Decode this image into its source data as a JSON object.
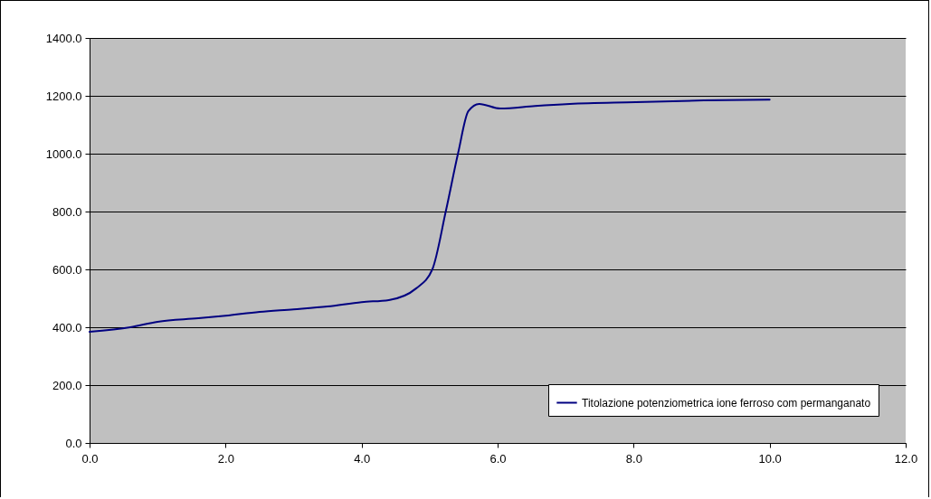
{
  "chart_data": {
    "type": "line",
    "x": [
      0,
      0.6,
      1,
      1.6,
      2,
      2.5,
      3,
      3.5,
      4,
      4.4,
      4.8,
      5.04,
      5.24,
      5.42,
      5.57,
      5.73,
      6.04,
      6.55,
      7.06,
      8.03,
      9.03,
      10
    ],
    "series": [
      {
        "name": "Titolazione potenziometrica ione ferroso com permanganato",
        "color": "#000080",
        "values": [
          384,
          400,
          419,
          431,
          440,
          453,
          462,
          472,
          487,
          494,
          534,
          600,
          803,
          1003,
          1147,
          1172,
          1156,
          1165,
          1172,
          1178,
          1184,
          1187
        ]
      }
    ],
    "xlim": [
      0,
      12
    ],
    "xticks": [
      {
        "value": 0,
        "label": "0.0"
      },
      {
        "value": 2,
        "label": "2.0"
      },
      {
        "value": 4,
        "label": "4.0"
      },
      {
        "value": 6,
        "label": "6.0"
      },
      {
        "value": 8,
        "label": "8.0"
      },
      {
        "value": 10,
        "label": "10.0"
      },
      {
        "value": 12,
        "label": "12.0"
      }
    ],
    "ylim": [
      0,
      1400
    ],
    "yticks": [
      {
        "value": 0,
        "label": "0.0"
      },
      {
        "value": 200,
        "label": "200.0"
      },
      {
        "value": 400,
        "label": "400.0"
      },
      {
        "value": 600,
        "label": "600.0"
      },
      {
        "value": 800,
        "label": "800.0"
      },
      {
        "value": 1000,
        "label": "1000.0"
      },
      {
        "value": 1200,
        "label": "1200.0"
      },
      {
        "value": 1400,
        "label": "1400.0"
      }
    ],
    "grid": "y",
    "legend": "bottom right",
    "marker": "none",
    "line_style": "solid"
  }
}
